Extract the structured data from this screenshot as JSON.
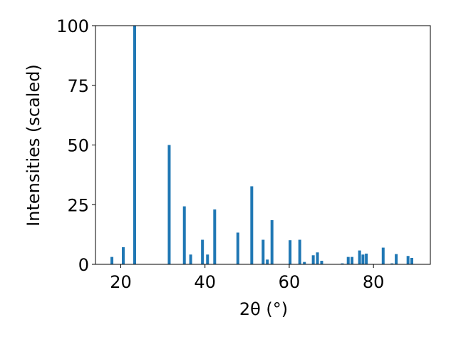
{
  "chart_data": {
    "type": "bar",
    "title": "",
    "xlabel": "2θ (°)",
    "ylabel": "Intensities (scaled)",
    "xlim": [
      14.0,
      93.5
    ],
    "ylim": [
      0,
      100
    ],
    "xticks": [
      20,
      40,
      60,
      80
    ],
    "yticks": [
      0,
      25,
      50,
      75,
      100
    ],
    "bar_color": "#1f77b4",
    "grid": false,
    "legend": "none",
    "x": [
      17.9,
      20.6,
      23.3,
      31.5,
      35.1,
      36.6,
      39.4,
      40.6,
      42.3,
      47.8,
      51.1,
      53.8,
      54.8,
      55.9,
      60.2,
      62.5,
      63.6,
      65.7,
      66.7,
      67.7,
      72.6,
      74.0,
      74.9,
      76.7,
      77.5,
      78.3,
      82.3,
      84.4,
      85.4,
      88.2,
      89.1
    ],
    "values": [
      3.1,
      7.2,
      100.0,
      50.0,
      24.3,
      4.1,
      10.3,
      4.1,
      23.0,
      13.3,
      32.7,
      10.3,
      2.0,
      18.5,
      10.1,
      10.3,
      1.0,
      3.8,
      5.0,
      1.5,
      0.4,
      3.1,
      3.1,
      5.8,
      4.1,
      4.5,
      7.0,
      0.4,
      4.3,
      3.5,
      2.7
    ]
  }
}
